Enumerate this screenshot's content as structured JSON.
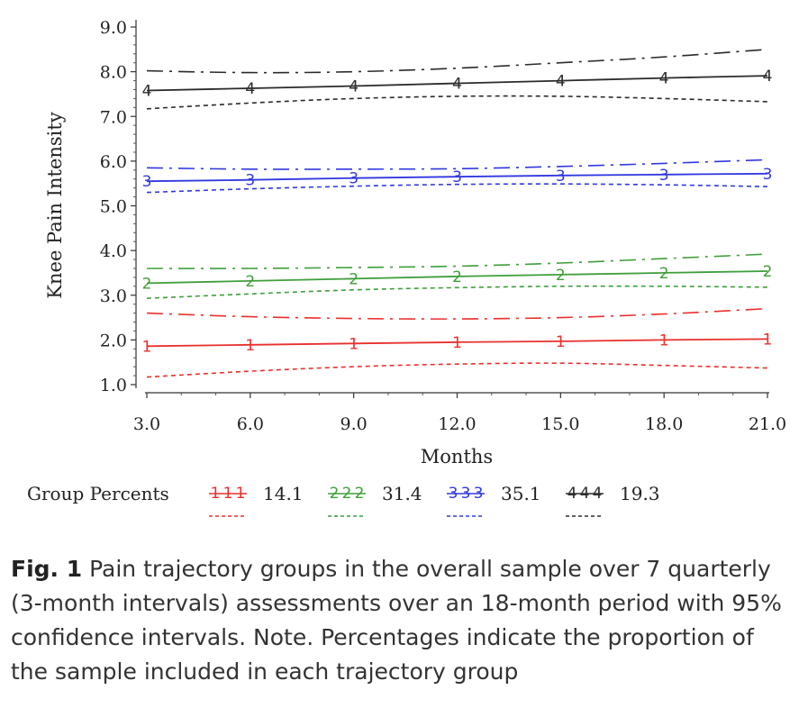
{
  "chart_data": {
    "type": "line",
    "xlabel": "Months",
    "ylabel": "Knee Pain Intensity",
    "x": [
      3,
      6,
      9,
      12,
      15,
      18,
      21
    ],
    "xticks": [
      "3.0",
      "6.0",
      "9.0",
      "12.0",
      "15.0",
      "18.0",
      "21.0"
    ],
    "yticks": [
      "1.0",
      "2.0",
      "3.0",
      "4.0",
      "5.0",
      "6.0",
      "7.0",
      "8.0",
      "9.0"
    ],
    "xlim": [
      3,
      21
    ],
    "ylim": [
      1,
      9
    ],
    "legend_title": "Group Percents",
    "series": [
      {
        "name": "14.1",
        "marker": "1",
        "color": "#e8302e",
        "values": [
          1.86,
          1.89,
          1.92,
          1.95,
          1.97,
          2.0,
          2.02
        ],
        "lower": [
          1.17,
          1.3,
          1.4,
          1.46,
          1.48,
          1.43,
          1.37
        ],
        "upper": [
          2.6,
          2.52,
          2.48,
          2.47,
          2.5,
          2.58,
          2.7
        ]
      },
      {
        "name": "31.4",
        "marker": "2",
        "color": "#3f9e3b",
        "values": [
          3.27,
          3.32,
          3.37,
          3.42,
          3.46,
          3.5,
          3.54
        ],
        "lower": [
          2.93,
          3.03,
          3.12,
          3.17,
          3.2,
          3.2,
          3.18
        ],
        "upper": [
          3.6,
          3.6,
          3.62,
          3.65,
          3.72,
          3.82,
          3.92
        ]
      },
      {
        "name": "35.1",
        "marker": "3",
        "color": "#3138e0",
        "values": [
          5.55,
          5.58,
          5.62,
          5.65,
          5.68,
          5.7,
          5.72
        ],
        "lower": [
          5.3,
          5.38,
          5.44,
          5.48,
          5.49,
          5.47,
          5.43
        ],
        "upper": [
          5.85,
          5.82,
          5.82,
          5.83,
          5.88,
          5.95,
          6.03
        ]
      },
      {
        "name": "19.3",
        "marker": "4",
        "color": "#2b2b2b",
        "values": [
          7.58,
          7.63,
          7.68,
          7.74,
          7.8,
          7.86,
          7.91
        ],
        "lower": [
          7.17,
          7.3,
          7.4,
          7.45,
          7.45,
          7.4,
          7.33
        ],
        "upper": [
          8.02,
          7.98,
          8.0,
          8.08,
          8.2,
          8.33,
          8.5
        ]
      }
    ]
  },
  "caption": {
    "label": "Fig. 1",
    "text": "Pain trajectory groups in the overall sample over 7 quarterly (3-month intervals) assessments over an 18-month period with 95% confidence intervals. Note. Percentages indicate the proportion of the sample included in each trajectory group"
  }
}
